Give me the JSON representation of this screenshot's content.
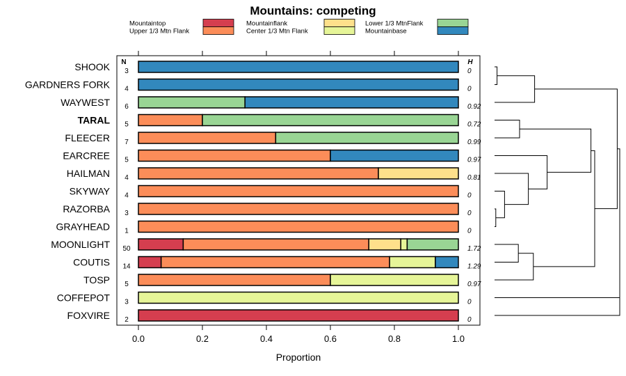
{
  "chart_data": {
    "type": "bar",
    "stacked": true,
    "orientation": "horizontal",
    "title": "Mountains: competing",
    "xlabel": "Proportion",
    "xlim": [
      0,
      1
    ],
    "xticks": [
      "0.0",
      "0.2",
      "0.4",
      "0.6",
      "0.8",
      "1.0"
    ],
    "n_header": "N",
    "h_header": "H",
    "legend": [
      {
        "key": "top",
        "name": "Mountaintop",
        "color": "#d53e4f"
      },
      {
        "key": "upper",
        "name": "Upper 1/3 Mtn Flank",
        "color": "#fc8d59"
      },
      {
        "key": "flank",
        "name": "Mountainflank",
        "color": "#fee08b"
      },
      {
        "key": "center",
        "name": "Center 1/3 Mtn Flank",
        "color": "#e6f598"
      },
      {
        "key": "lower",
        "name": "Lower 1/3 MtnFlank",
        "color": "#99d594"
      },
      {
        "key": "base",
        "name": "Mountainbase",
        "color": "#3288bd"
      }
    ],
    "rows": [
      {
        "label": "SHOOK",
        "n": "3",
        "h": "0",
        "bold": false,
        "segments": [
          {
            "cat": "base",
            "value": 1.0
          }
        ]
      },
      {
        "label": "GARDNERS FORK",
        "n": "4",
        "h": "0",
        "bold": false,
        "segments": [
          {
            "cat": "base",
            "value": 1.0
          }
        ]
      },
      {
        "label": "WAYWEST",
        "n": "6",
        "h": "0.92",
        "bold": false,
        "segments": [
          {
            "cat": "lower",
            "value": 0.333
          },
          {
            "cat": "base",
            "value": 0.667
          }
        ]
      },
      {
        "label": "TARAL",
        "n": "5",
        "h": "0.72",
        "bold": true,
        "segments": [
          {
            "cat": "upper",
            "value": 0.2
          },
          {
            "cat": "lower",
            "value": 0.8
          }
        ]
      },
      {
        "label": "FLEECER",
        "n": "7",
        "h": "0.99",
        "bold": false,
        "segments": [
          {
            "cat": "upper",
            "value": 0.429
          },
          {
            "cat": "lower",
            "value": 0.571
          }
        ]
      },
      {
        "label": "EARCREE",
        "n": "5",
        "h": "0.97",
        "bold": false,
        "segments": [
          {
            "cat": "upper",
            "value": 0.6
          },
          {
            "cat": "base",
            "value": 0.4
          }
        ]
      },
      {
        "label": "HAILMAN",
        "n": "4",
        "h": "0.81",
        "bold": false,
        "segments": [
          {
            "cat": "upper",
            "value": 0.75
          },
          {
            "cat": "flank",
            "value": 0.25
          }
        ]
      },
      {
        "label": "SKYWAY",
        "n": "4",
        "h": "0",
        "bold": false,
        "segments": [
          {
            "cat": "upper",
            "value": 1.0
          }
        ]
      },
      {
        "label": "RAZORBA",
        "n": "3",
        "h": "0",
        "bold": false,
        "segments": [
          {
            "cat": "upper",
            "value": 1.0
          }
        ]
      },
      {
        "label": "GRAYHEAD",
        "n": "1",
        "h": "0",
        "bold": false,
        "segments": [
          {
            "cat": "upper",
            "value": 1.0
          }
        ]
      },
      {
        "label": "MOONLIGHT",
        "n": "50",
        "h": "1.72",
        "bold": false,
        "segments": [
          {
            "cat": "top",
            "value": 0.14
          },
          {
            "cat": "upper",
            "value": 0.58
          },
          {
            "cat": "flank",
            "value": 0.1
          },
          {
            "cat": "center",
            "value": 0.02
          },
          {
            "cat": "lower",
            "value": 0.16
          }
        ]
      },
      {
        "label": "COUTIS",
        "n": "14",
        "h": "1.29",
        "bold": false,
        "segments": [
          {
            "cat": "top",
            "value": 0.071
          },
          {
            "cat": "upper",
            "value": 0.714
          },
          {
            "cat": "center",
            "value": 0.143
          },
          {
            "cat": "base",
            "value": 0.072
          }
        ]
      },
      {
        "label": "TOSP",
        "n": "5",
        "h": "0.97",
        "bold": false,
        "segments": [
          {
            "cat": "upper",
            "value": 0.6
          },
          {
            "cat": "center",
            "value": 0.4
          }
        ]
      },
      {
        "label": "COFFEPOT",
        "n": "3",
        "h": "0",
        "bold": false,
        "segments": [
          {
            "cat": "center",
            "value": 1.0
          }
        ]
      },
      {
        "label": "FOXVIRE",
        "n": "2",
        "h": "0",
        "bold": false,
        "segments": [
          {
            "cat": "top",
            "value": 1.0
          }
        ]
      }
    ],
    "dendrogram": {
      "leaves": [
        "SHOOK",
        "GARDNERS FORK",
        "WAYWEST",
        "TARAL",
        "FLEECER",
        "EARCREE",
        "HAILMAN",
        "SKYWAY",
        "RAZORBA",
        "GRAYHEAD",
        "MOONLIGHT",
        "COUTIS",
        "TOSP",
        "COFFEPOT",
        "FOXVIRE"
      ],
      "merges": [
        {
          "a": "SHOOK",
          "b": "GARDNERS FORK",
          "height": 0.02
        },
        {
          "a": "c1",
          "b": "WAYWEST",
          "height": 0.32
        },
        {
          "a": "TARAL",
          "b": "FLEECER",
          "height": 0.2
        },
        {
          "a": "RAZORBA",
          "b": "GRAYHEAD",
          "height": 0.01
        },
        {
          "a": "SKYWAY",
          "b": "c4",
          "height": 0.08
        },
        {
          "a": "HAILMAN",
          "b": "c5",
          "height": 0.27
        },
        {
          "a": "EARCREE",
          "b": "c6",
          "height": 0.42
        },
        {
          "a": "c3",
          "b": "c7",
          "height": 0.77
        },
        {
          "a": "MOONLIGHT",
          "b": "COUTIS",
          "height": 0.19
        },
        {
          "a": "c9",
          "b": "TOSP",
          "height": 0.31
        },
        {
          "a": "c8",
          "b": "c10",
          "height": 0.8
        },
        {
          "a": "c2",
          "b": "c11",
          "height": 0.98
        },
        {
          "a": "FOXVIRE",
          "b": "COFFEPOT",
          "height": 1.0
        },
        {
          "a": "c12",
          "b": "c13",
          "height": 1.0
        }
      ]
    }
  }
}
